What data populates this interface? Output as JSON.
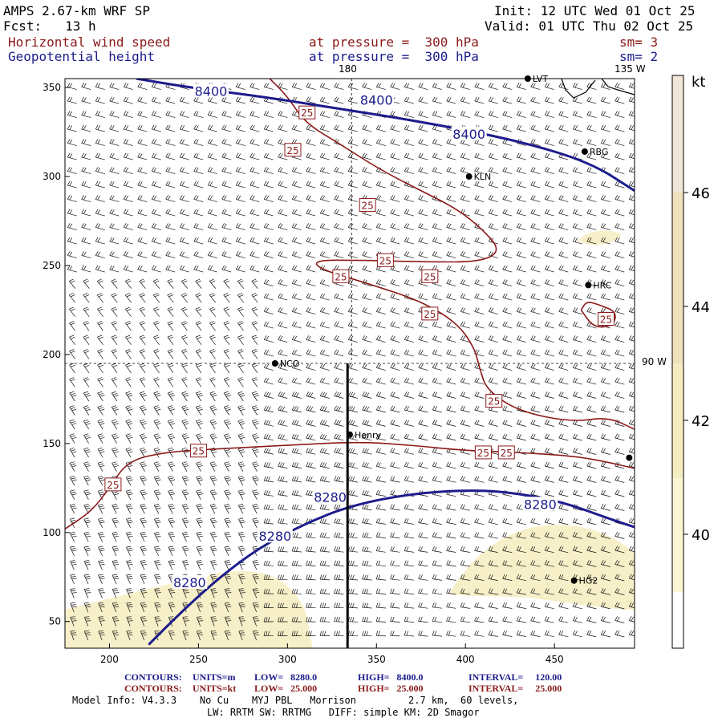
{
  "header": {
    "model_title": "AMPS 2.67-km WRF SP",
    "forecast": "Fcst:   13 h",
    "init": "Init: 12 UTC Wed 01 Oct 25",
    "valid": "Valid: 01 UTC Thu 02 Oct 25"
  },
  "fields": [
    {
      "name": "Horizontal wind speed",
      "pressure": "at pressure =  300 hPa",
      "smooth": "sm= 3",
      "color": "#8b1a1a"
    },
    {
      "name": "Geopotential height",
      "pressure": "at pressure =  300 hPa",
      "smooth": "sm= 2",
      "color": "#1c1c8c"
    }
  ],
  "longitude_labels": {
    "top": "180",
    "top_right": "135 W",
    "right": "90 W"
  },
  "axes": {
    "x_ticks": [
      "200",
      "250",
      "300",
      "350",
      "400",
      "450"
    ],
    "y_ticks": [
      "350",
      "300",
      "250",
      "200",
      "150",
      "100",
      "50"
    ],
    "x_range": [
      175,
      495
    ],
    "y_range": [
      35,
      355
    ]
  },
  "stations": [
    {
      "name": "LVT",
      "x": 435,
      "y": 355
    },
    {
      "name": "RBG",
      "x": 467,
      "y": 314
    },
    {
      "name": "KLN",
      "x": 402,
      "y": 300
    },
    {
      "name": "HRC",
      "x": 469,
      "y": 239
    },
    {
      "name": "NCO",
      "x": 293,
      "y": 195
    },
    {
      "name": "Henry",
      "x": 335,
      "y": 155
    },
    {
      "name": "HG2",
      "x": 461,
      "y": 73
    },
    {
      "name": "",
      "x": 492,
      "y": 142
    }
  ],
  "height_contours": [
    {
      "value": 8400,
      "label": "8400",
      "points": [
        [
          215,
          355
        ],
        [
          245,
          350
        ],
        [
          285,
          345
        ],
        [
          330,
          338
        ],
        [
          380,
          330
        ],
        [
          430,
          320
        ],
        [
          470,
          308
        ],
        [
          495,
          292
        ]
      ],
      "label_positions": [
        [
          257,
          348
        ],
        [
          350,
          343
        ],
        [
          402,
          324
        ]
      ]
    },
    {
      "value": 8280,
      "label": "8280",
      "points": [
        [
          222,
          37
        ],
        [
          240,
          55
        ],
        [
          262,
          75
        ],
        [
          285,
          92
        ],
        [
          310,
          105
        ],
        [
          335,
          115
        ],
        [
          370,
          122
        ],
        [
          405,
          124
        ],
        [
          430,
          122
        ],
        [
          455,
          117
        ],
        [
          480,
          108
        ],
        [
          495,
          103
        ]
      ],
      "label_positions": [
        [
          245,
          72
        ],
        [
          293,
          98
        ],
        [
          324,
          120
        ],
        [
          442,
          116
        ]
      ]
    }
  ],
  "speed_contours": [
    {
      "value": 25,
      "label": "25",
      "points": [
        [
          175,
          102
        ],
        [
          190,
          112
        ],
        [
          200,
          125
        ],
        [
          210,
          140
        ],
        [
          230,
          145
        ],
        [
          260,
          147
        ],
        [
          300,
          149
        ],
        [
          340,
          151
        ],
        [
          370,
          149
        ],
        [
          400,
          146
        ],
        [
          430,
          145
        ],
        [
          460,
          143
        ],
        [
          478,
          140
        ],
        [
          495,
          136
        ]
      ],
      "label_positions": [
        [
          202,
          127
        ],
        [
          250,
          146
        ],
        [
          410,
          145
        ],
        [
          423,
          145
        ]
      ]
    },
    {
      "value": 25,
      "label": "25",
      "points": [
        [
          290,
          355
        ],
        [
          300,
          345
        ],
        [
          310,
          330
        ],
        [
          330,
          318
        ],
        [
          350,
          305
        ],
        [
          375,
          292
        ],
        [
          395,
          282
        ],
        [
          410,
          270
        ],
        [
          420,
          258
        ],
        [
          408,
          252
        ],
        [
          380,
          252
        ],
        [
          340,
          253
        ],
        [
          315,
          253
        ],
        [
          318,
          248
        ],
        [
          345,
          240
        ],
        [
          375,
          230
        ],
        [
          395,
          218
        ],
        [
          405,
          204
        ],
        [
          408,
          192
        ],
        [
          412,
          180
        ],
        [
          430,
          168
        ],
        [
          460,
          162
        ],
        [
          480,
          165
        ],
        [
          495,
          158
        ]
      ],
      "label_positions": [
        [
          311,
          336
        ],
        [
          303,
          315
        ],
        [
          345,
          284
        ],
        [
          355,
          253
        ],
        [
          330,
          244
        ],
        [
          380,
          244
        ],
        [
          380,
          223
        ],
        [
          416,
          174
        ]
      ]
    },
    {
      "value": 25,
      "label": "25",
      "points": [
        [
          465,
          225
        ],
        [
          468,
          230
        ],
        [
          475,
          228
        ],
        [
          485,
          224
        ],
        [
          483,
          216
        ],
        [
          472,
          215
        ],
        [
          465,
          225
        ]
      ],
      "label_positions": [
        [
          479,
          220
        ]
      ]
    }
  ],
  "legend": {
    "unit": "kt",
    "levels": [
      "46",
      "44",
      "42",
      "40"
    ],
    "colors": [
      "#ffffff",
      "#fdf6d4",
      "#f5edc1",
      "#efe1bb",
      "#f2e6da"
    ]
  },
  "cross_section": {
    "x": 336,
    "y_start": 195,
    "y_end": 35
  },
  "grid_lines": {
    "x": 336,
    "y": 195
  },
  "footer": {
    "height": {
      "label": "CONTOURS:",
      "units": "UNITS=m",
      "low": "LOW=   8280.0",
      "high": "HIGH=   8400.0",
      "interval": "INTERVAL=     120.00"
    },
    "speed": {
      "label": "CONTOURS:",
      "units": "UNITS=kt",
      "low": "LOW=   25.000",
      "high": "HIGH=   25.000",
      "interval": "INTERVAL=     25.000"
    },
    "model_info": "Model Info: V4.3.3    No Cu    MYJ PBL   Morrison         2.7 km,  60 levels,",
    "physics": "LW: RRTM SW: RRTMG   DIFF: simple KM: 2D Smagor"
  }
}
